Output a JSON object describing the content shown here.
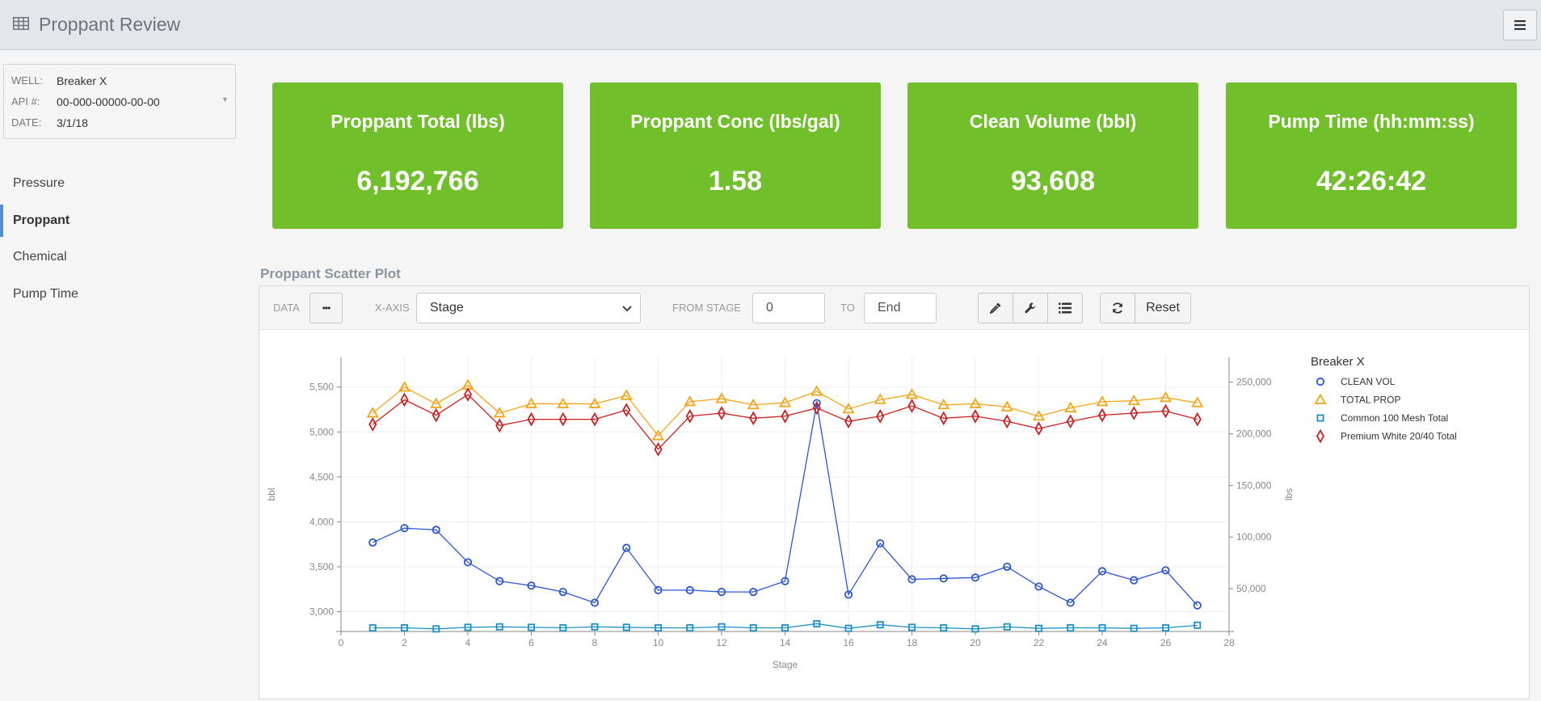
{
  "app": {
    "title": "Proppant Review"
  },
  "well": {
    "well_label": "WELL:",
    "well_value": "Breaker X",
    "api_label": "API #:",
    "api_value": "00-000-00000-00-00",
    "date_label": "DATE:",
    "date_value": "3/1/18"
  },
  "nav": {
    "items": [
      "Pressure",
      "Proppant",
      "Chemical",
      "Pump Time"
    ],
    "active": "Proppant"
  },
  "cards": [
    {
      "title": "Proppant Total (lbs)",
      "value": "6,192,766"
    },
    {
      "title": "Proppant Conc (lbs/gal)",
      "value": "1.58"
    },
    {
      "title": "Clean Volume (bbl)",
      "value": "93,608"
    },
    {
      "title": "Pump Time (hh:mm:ss)",
      "value": "42:26:42"
    }
  ],
  "colors": {
    "card_green": "#72bf2c",
    "clean_vol": "#2c56d6",
    "total_prop": "#f5a51a",
    "mesh": "#1e90c8",
    "premium": "#cc1f1f"
  },
  "panel": {
    "title": "Proppant Scatter Plot",
    "data_label": "DATA",
    "data_button": "•••",
    "xaxis_label": "X-AXIS",
    "xaxis_value": "Stage",
    "from_label": "FROM STAGE",
    "from_value": "0",
    "to_label": "TO",
    "to_value": "End",
    "reset_label": "Reset",
    "icons": [
      "eyedropper-icon",
      "wrench-icon",
      "list-icon",
      "refresh-icon"
    ]
  },
  "chart_data": {
    "type": "scatter",
    "title": "",
    "xlabel": "Stage",
    "ylabel": "bbl",
    "y2label": "lbs",
    "xlim": [
      0,
      28
    ],
    "x_ticks": [
      0,
      2,
      4,
      6,
      8,
      10,
      12,
      14,
      16,
      18,
      20,
      22,
      24,
      26,
      28
    ],
    "ylim": [
      2780,
      5830
    ],
    "y_ticks": [
      3000,
      3500,
      4000,
      4500,
      5000,
      5500
    ],
    "y_tick_labels": [
      "3,000",
      "3,500",
      "4,000",
      "4,500",
      "5,000",
      "5,500"
    ],
    "y2lim": [
      8500,
      274000
    ],
    "y2_ticks": [
      50000,
      100000,
      150000,
      200000,
      250000
    ],
    "y2_tick_labels": [
      "50,000",
      "100,000",
      "150,000",
      "200,000",
      "250,000"
    ],
    "grid": true,
    "legend_title": "Breaker X",
    "legend_position": "right",
    "x": [
      1,
      2,
      3,
      4,
      5,
      6,
      7,
      8,
      9,
      10,
      11,
      12,
      13,
      14,
      15,
      16,
      17,
      18,
      19,
      20,
      21,
      22,
      23,
      24,
      25,
      26,
      27
    ],
    "series": [
      {
        "name": "CLEAN VOL",
        "axis": "left",
        "marker": "circle",
        "color": "#2c56d6",
        "values": [
          3770,
          3930,
          3910,
          3550,
          3340,
          3290,
          3220,
          3100,
          3710,
          3240,
          3240,
          3220,
          3220,
          3340,
          5320,
          3190,
          3760,
          3360,
          3370,
          3380,
          3500,
          3280,
          3100,
          3450,
          3350,
          3460,
          3070
        ]
      },
      {
        "name": "TOTAL PROP",
        "axis": "right",
        "marker": "triangle",
        "color": "#f5a51a",
        "values": [
          220000,
          245000,
          229000,
          247000,
          220000,
          229000,
          229000,
          229000,
          237000,
          198000,
          231000,
          234000,
          228000,
          230000,
          241000,
          224000,
          233000,
          238000,
          228000,
          229000,
          226000,
          217000,
          225000,
          231000,
          232000,
          235000,
          230000
        ]
      },
      {
        "name": "Common 100 Mesh Total",
        "axis": "right",
        "marker": "square",
        "color": "#1e90c8",
        "values": [
          12000,
          12000,
          11000,
          12500,
          13000,
          12500,
          12000,
          13000,
          12500,
          12000,
          12000,
          13000,
          12000,
          12000,
          16000,
          11500,
          15000,
          12500,
          12000,
          11000,
          13000,
          11500,
          12000,
          12000,
          11500,
          12000,
          14500
        ]
      },
      {
        "name": "Premium White 20/40 Total",
        "axis": "right",
        "marker": "diamond",
        "color": "#cc1f1f",
        "values": [
          209000,
          233000,
          218000,
          238000,
          208000,
          214000,
          214000,
          214000,
          223000,
          185000,
          217000,
          220000,
          215000,
          217000,
          225000,
          212000,
          217000,
          227000,
          215000,
          217000,
          212000,
          205000,
          212000,
          218000,
          220000,
          222000,
          214000
        ]
      }
    ]
  }
}
